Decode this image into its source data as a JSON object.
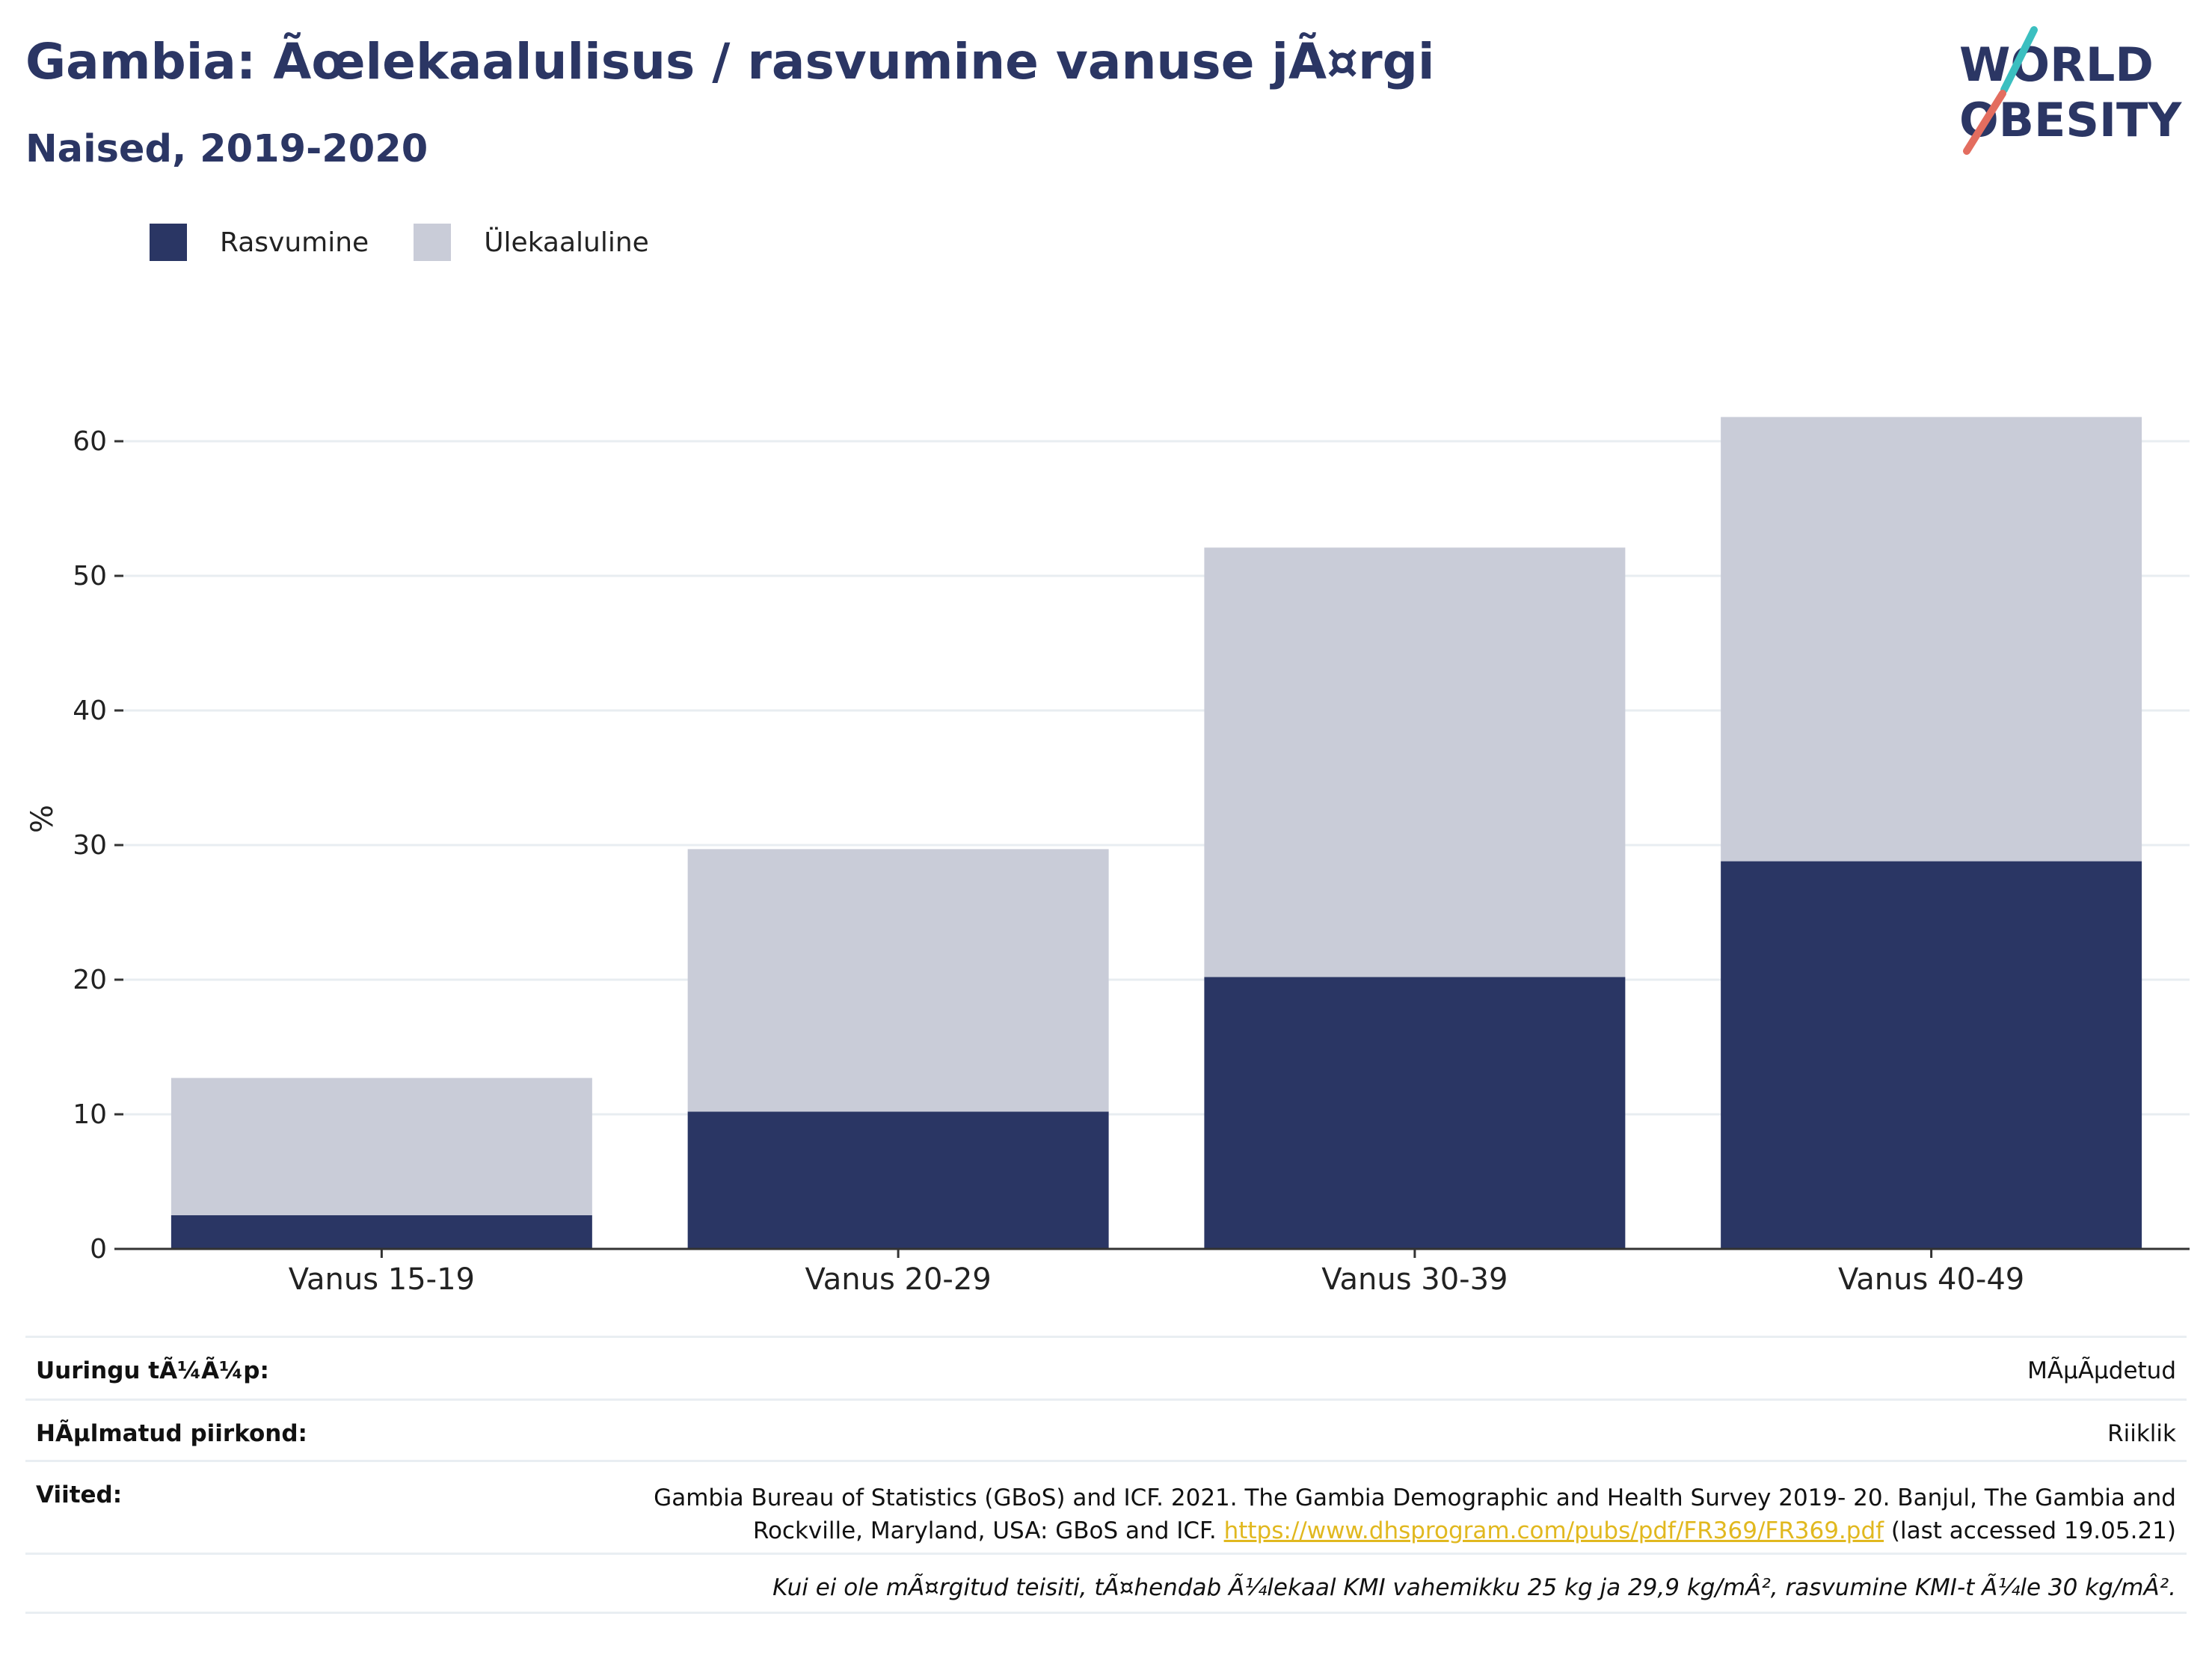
{
  "header": {
    "title": "Gambia: Ãœlekaalulisus / rasvumine vanuse jÃ¤rgi",
    "subtitle": "Naised, 2019-2020"
  },
  "logo": {
    "line1": "WORLD",
    "line2": "OBESITY",
    "accent_teal": "#3bbfc0",
    "accent_coral": "#e36d5f"
  },
  "legend": {
    "items": [
      {
        "label": "Rasvumine",
        "color": "#2a3664"
      },
      {
        "label": "Ülekaaluline",
        "color": "#c9ccd8"
      }
    ]
  },
  "chart_data": {
    "type": "bar",
    "stacked": true,
    "categories": [
      "Vanus 15-19",
      "Vanus 20-29",
      "Vanus 30-39",
      "Vanus 40-49"
    ],
    "series": [
      {
        "name": "Rasvumine",
        "color": "#2a3664",
        "values": [
          2.5,
          10.2,
          20.2,
          28.8
        ]
      },
      {
        "name": "Ülekaaluline",
        "color": "#c9ccd8",
        "values": [
          10.2,
          19.5,
          31.9,
          33.0
        ]
      }
    ],
    "ylabel": "%",
    "ylim": [
      0,
      65
    ],
    "yticks": [
      0,
      10,
      20,
      30,
      40,
      50,
      60
    ],
    "grid": true,
    "legend_position": "top-left"
  },
  "footer": {
    "survey_type_label": "Uuringu tÃ¼Ã¼p:",
    "survey_type_value": "MÃµÃµdetud",
    "coverage_label": "HÃµlmatud piirkond:",
    "coverage_value": "Riiklik",
    "references_label": "Viited:",
    "references_text_1": "Gambia Bureau of Statistics (GBoS) and ICF. 2021. The Gambia Demographic and Health Survey 2019- 20. Banjul, The Gambia and",
    "references_text_2": "Rockville, Maryland, USA: GBoS and ICF.",
    "references_link": "https://www.dhsprogram.com/pubs/pdf/FR369/FR369.pdf",
    "references_accessed": "(last accessed 19.05.21)",
    "note": "Kui ei ole mÃ¤rgitud teisiti, tÃ¤hendab Ã¼lekaal KMI vahemikku 25 kg ja 29,9 kg/mÂ², rasvumine KMI-t Ã¼le 30 kg/mÂ²."
  }
}
